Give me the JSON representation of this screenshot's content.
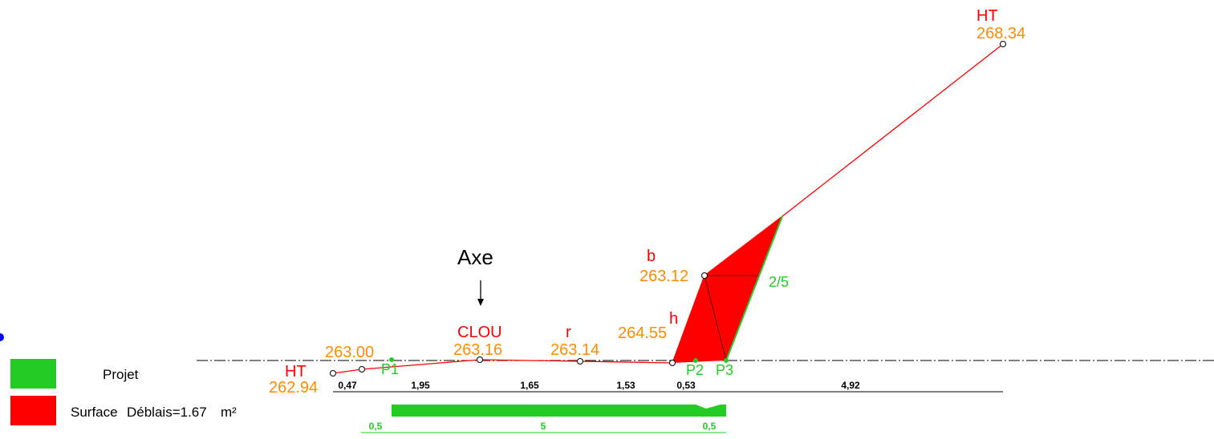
{
  "axis_label": "Axe",
  "terrain_points": [
    {
      "code": "HT",
      "elevation": "262.94"
    },
    {
      "elevation": "263.00"
    },
    {
      "code": "CLOU",
      "elevation": "263.16"
    },
    {
      "code": "r",
      "elevation": "263.14"
    },
    {
      "code": "h",
      "elevation": "264.55"
    },
    {
      "code": "b",
      "elevation": "263.12"
    },
    {
      "code": "HT",
      "elevation": "268.34"
    }
  ],
  "project_points": [
    "P1",
    "P2",
    "P3"
  ],
  "slope": "2/5",
  "distances": [
    "0,47",
    "1,95",
    "1,65",
    "1,53",
    "0,53",
    "4,92"
  ],
  "project_distances": [
    "0,5",
    "5",
    "0,5"
  ],
  "legend": [
    {
      "label": "Projet"
    },
    {
      "label": "Surface",
      "detail": "Déblais=1.67",
      "unit": "m²"
    }
  ]
}
